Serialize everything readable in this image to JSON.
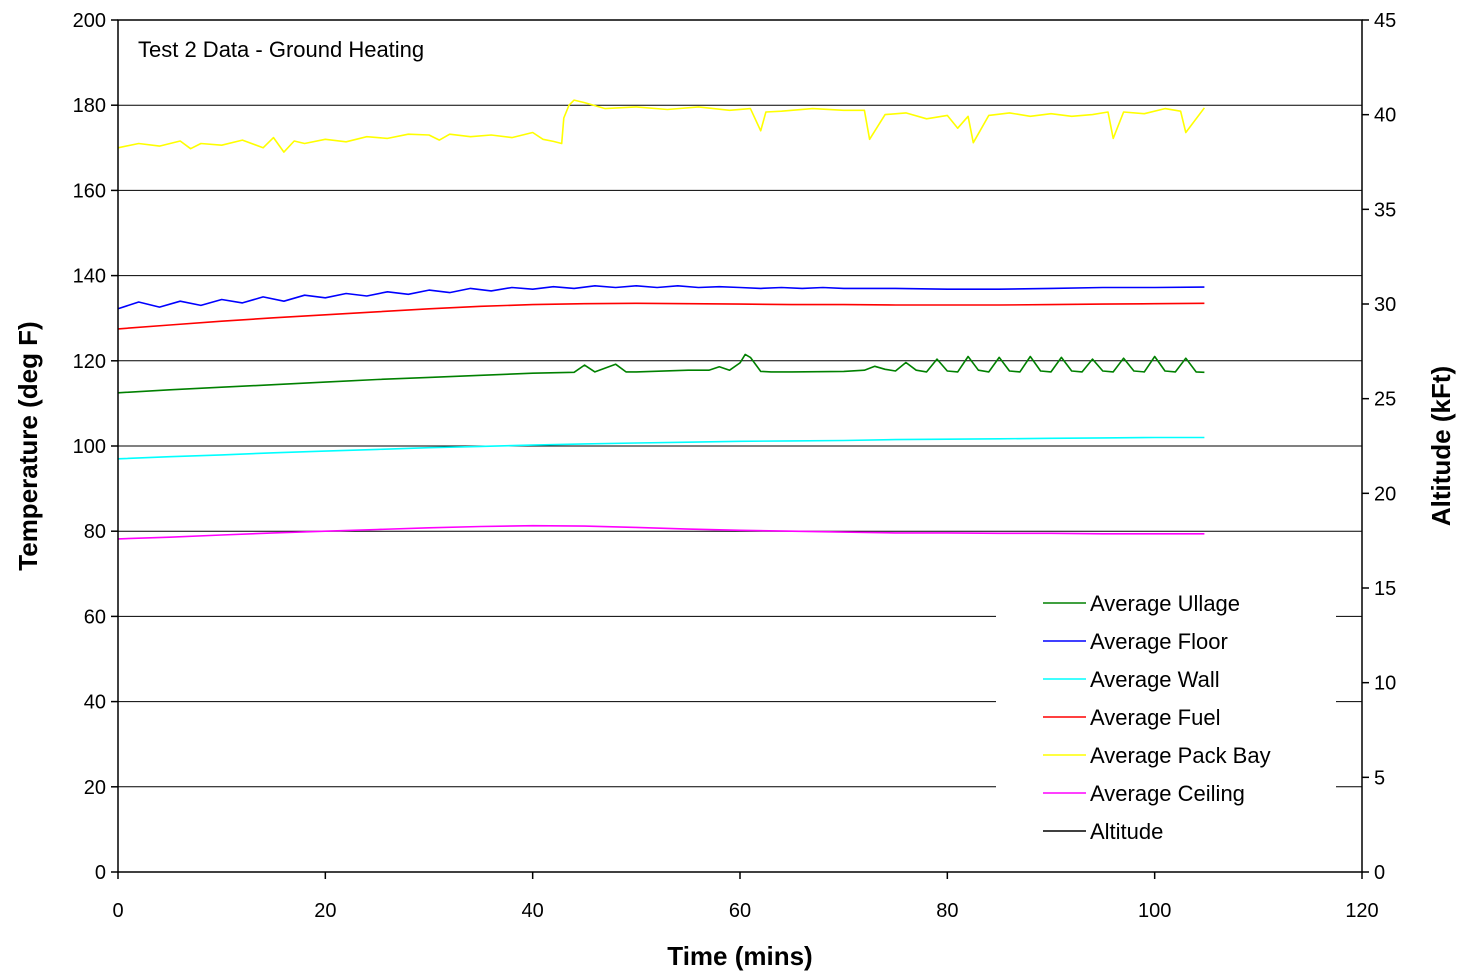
{
  "chart_data": {
    "type": "line",
    "annotation": "Test 2 Data - Ground Heating",
    "xlabel": "Time (mins)",
    "ylabel": "Temperature (deg F)",
    "y2label": "Altitude (kFt)",
    "xlim": [
      0,
      120
    ],
    "ylim": [
      0,
      200
    ],
    "y2lim": [
      0,
      45
    ],
    "x_ticks": [
      "0",
      "20",
      "40",
      "60",
      "80",
      "100",
      "120"
    ],
    "y_ticks": [
      "0",
      "20",
      "40",
      "60",
      "80",
      "100",
      "120",
      "140",
      "160",
      "180",
      "200"
    ],
    "y2_ticks": [
      "0",
      "5",
      "10",
      "15",
      "20",
      "25",
      "30",
      "35",
      "40",
      "45"
    ],
    "grid": true,
    "legend_position": "bottom-right",
    "series": [
      {
        "name": "Average Ullage",
        "color": "#008000",
        "axis": "left",
        "x": [
          0,
          5,
          10,
          15,
          20,
          25,
          30,
          35,
          40,
          44,
          45,
          46,
          48,
          49,
          50,
          55,
          57,
          58,
          59,
          60,
          60.5,
          61,
          62,
          63,
          65,
          70,
          72,
          73,
          74,
          75,
          76,
          77,
          78,
          79,
          80,
          81,
          82,
          83,
          84,
          85,
          86,
          87,
          88,
          89,
          90,
          91,
          92,
          93,
          94,
          95,
          96,
          97,
          98,
          99,
          100,
          101,
          102,
          103,
          104,
          104.8
        ],
        "y": [
          112.5,
          113.2,
          113.8,
          114.4,
          115.0,
          115.6,
          116.1,
          116.6,
          117.1,
          117.3,
          119.0,
          117.4,
          119.2,
          117.4,
          117.4,
          117.8,
          117.8,
          118.6,
          117.8,
          119.5,
          121.5,
          120.8,
          117.5,
          117.4,
          117.4,
          117.5,
          117.8,
          118.7,
          118.0,
          117.6,
          119.6,
          117.8,
          117.4,
          120.4,
          117.6,
          117.4,
          121.0,
          117.8,
          117.4,
          120.8,
          117.6,
          117.4,
          121.0,
          117.6,
          117.4,
          120.8,
          117.6,
          117.4,
          120.4,
          117.6,
          117.4,
          120.6,
          117.6,
          117.4,
          121.0,
          117.6,
          117.4,
          120.6,
          117.4,
          117.3
        ]
      },
      {
        "name": "Average Floor",
        "color": "#0000ff",
        "axis": "left",
        "x": [
          0,
          2,
          4,
          6,
          8,
          10,
          12,
          14,
          16,
          18,
          20,
          22,
          24,
          26,
          28,
          30,
          32,
          34,
          36,
          38,
          40,
          42,
          44,
          46,
          48,
          50,
          52,
          54,
          56,
          58,
          60,
          62,
          64,
          66,
          68,
          70,
          75,
          80,
          85,
          90,
          95,
          100,
          104.8
        ],
        "y": [
          132.2,
          133.8,
          132.6,
          134.0,
          133.0,
          134.4,
          133.6,
          135.0,
          134.0,
          135.4,
          134.8,
          135.8,
          135.2,
          136.2,
          135.6,
          136.6,
          136.0,
          137.0,
          136.4,
          137.2,
          136.8,
          137.4,
          137.0,
          137.6,
          137.2,
          137.6,
          137.2,
          137.6,
          137.2,
          137.4,
          137.2,
          137.0,
          137.2,
          137.0,
          137.2,
          137.0,
          137.0,
          136.8,
          136.8,
          137.0,
          137.2,
          137.2,
          137.3
        ]
      },
      {
        "name": "Average Wall",
        "color": "#00ffff",
        "axis": "left",
        "x": [
          0,
          5,
          10,
          15,
          20,
          25,
          30,
          35,
          40,
          45,
          50,
          55,
          60,
          65,
          70,
          75,
          80,
          85,
          90,
          95,
          100,
          104.8
        ],
        "y": [
          97.0,
          97.5,
          97.9,
          98.4,
          98.8,
          99.2,
          99.6,
          99.9,
          100.2,
          100.5,
          100.7,
          100.9,
          101.1,
          101.2,
          101.3,
          101.5,
          101.6,
          101.7,
          101.8,
          101.9,
          102.0,
          102.0
        ]
      },
      {
        "name": "Average Fuel",
        "color": "#ff0000",
        "axis": "left",
        "x": [
          0,
          5,
          10,
          15,
          20,
          25,
          30,
          35,
          40,
          45,
          50,
          55,
          60,
          65,
          70,
          75,
          80,
          85,
          90,
          95,
          100,
          104.8
        ],
        "y": [
          127.5,
          128.4,
          129.3,
          130.1,
          130.8,
          131.5,
          132.2,
          132.8,
          133.2,
          133.4,
          133.5,
          133.4,
          133.3,
          133.2,
          133.2,
          133.1,
          133.1,
          133.1,
          133.2,
          133.3,
          133.4,
          133.5
        ]
      },
      {
        "name": "Average Pack Bay",
        "color": "#ffff00",
        "axis": "left",
        "x": [
          0,
          2,
          4,
          6,
          7,
          8,
          10,
          12,
          14,
          15,
          16,
          17,
          18,
          20,
          22,
          24,
          26,
          28,
          30,
          31,
          32,
          34,
          36,
          38,
          40,
          41,
          42,
          42.8,
          43,
          43.5,
          44,
          45,
          47,
          50,
          53,
          56,
          59,
          61,
          62,
          62.5,
          64,
          67,
          70,
          72,
          72.5,
          74,
          76,
          78,
          80,
          81,
          82,
          82.5,
          84,
          86,
          88,
          90,
          92,
          94,
          95.5,
          96,
          97,
          99,
          101,
          102.5,
          103,
          104.8
        ],
        "y": [
          170.0,
          171.0,
          170.4,
          171.6,
          169.8,
          171.0,
          170.6,
          171.8,
          170.0,
          172.4,
          169.0,
          171.6,
          171.0,
          172.0,
          171.4,
          172.6,
          172.2,
          173.2,
          173.0,
          171.8,
          173.2,
          172.6,
          173.0,
          172.4,
          173.6,
          172.0,
          171.5,
          171.0,
          177.0,
          180.0,
          181.2,
          180.6,
          179.2,
          179.6,
          179.0,
          179.6,
          178.8,
          179.2,
          174.0,
          178.4,
          178.6,
          179.2,
          178.8,
          178.8,
          172.0,
          177.8,
          178.2,
          176.8,
          177.6,
          174.6,
          177.4,
          171.2,
          177.6,
          178.2,
          177.4,
          178.0,
          177.4,
          177.8,
          178.4,
          172.2,
          178.4,
          178.0,
          179.2,
          178.6,
          173.6,
          179.4
        ]
      },
      {
        "name": "Average Ceiling",
        "color": "#ff00ff",
        "axis": "left",
        "x": [
          0,
          5,
          10,
          15,
          20,
          25,
          30,
          35,
          40,
          45,
          50,
          55,
          60,
          65,
          70,
          75,
          80,
          85,
          90,
          95,
          100,
          104.8
        ],
        "y": [
          78.2,
          78.6,
          79.1,
          79.6,
          80.0,
          80.4,
          80.8,
          81.1,
          81.3,
          81.2,
          80.9,
          80.5,
          80.2,
          80.0,
          79.8,
          79.6,
          79.6,
          79.5,
          79.5,
          79.4,
          79.4,
          79.4
        ]
      },
      {
        "name": "Altitude",
        "color": "#000000",
        "axis": "right",
        "x": [],
        "y": []
      }
    ]
  }
}
